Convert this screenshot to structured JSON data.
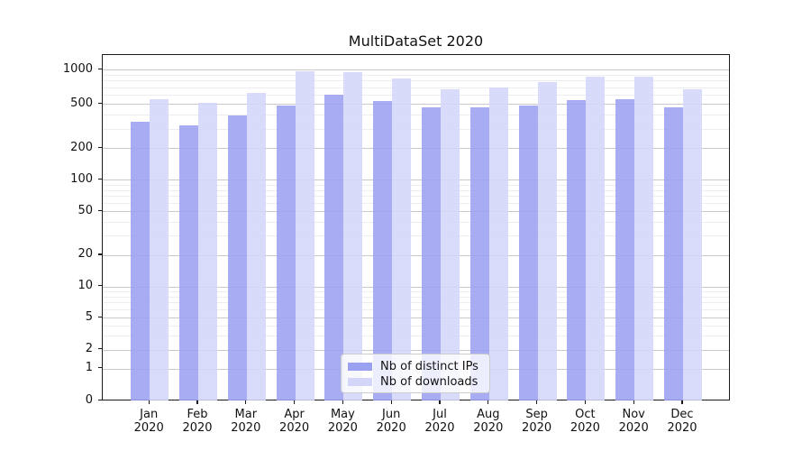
{
  "title": "MultiDataSet 2020",
  "legend": {
    "entries": [
      {
        "label": "Nb of distinct IPs",
        "color": "#9ba1f1"
      },
      {
        "label": "Nb of downloads",
        "color": "#d3d6f9"
      }
    ]
  },
  "y_axis": {
    "tick_labels": [
      "1000",
      "500",
      "200",
      "100",
      "50",
      "20",
      "10",
      "5",
      "2",
      "1",
      "0"
    ]
  },
  "x_axis": {
    "tick_labels": [
      {
        "month": "Jan",
        "year": "2020"
      },
      {
        "month": "Feb",
        "year": "2020"
      },
      {
        "month": "Mar",
        "year": "2020"
      },
      {
        "month": "Apr",
        "year": "2020"
      },
      {
        "month": "May",
        "year": "2020"
      },
      {
        "month": "Jun",
        "year": "2020"
      },
      {
        "month": "Jul",
        "year": "2020"
      },
      {
        "month": "Aug",
        "year": "2020"
      },
      {
        "month": "Sep",
        "year": "2020"
      },
      {
        "month": "Oct",
        "year": "2020"
      },
      {
        "month": "Nov",
        "year": "2020"
      },
      {
        "month": "Dec",
        "year": "2020"
      }
    ]
  },
  "chart_data": {
    "type": "bar",
    "title": "MultiDataSet 2020",
    "categories": [
      "Jan 2020",
      "Feb 2020",
      "Mar 2020",
      "Apr 2020",
      "May 2020",
      "Jun 2020",
      "Jul 2020",
      "Aug 2020",
      "Sep 2020",
      "Oct 2020",
      "Nov 2020",
      "Dec 2020"
    ],
    "series": [
      {
        "name": "Nb of distinct IPs",
        "color": "#9ba1f1",
        "values": [
          345,
          318,
          391,
          485,
          600,
          528,
          467,
          462,
          484,
          538,
          548,
          465
        ]
      },
      {
        "name": "Nb of downloads",
        "color": "#d3d6f9",
        "values": [
          545,
          512,
          626,
          969,
          947,
          838,
          673,
          694,
          775,
          860,
          862,
          675
        ]
      }
    ],
    "xlabel": "",
    "ylabel": "",
    "y_scale": "log-like, labeled ticks 0,1,2,5,10,20,50,100,200,500,1000",
    "ylim": [
      0,
      1300
    ],
    "grid": true,
    "legend_position": "lower center inside plot"
  }
}
